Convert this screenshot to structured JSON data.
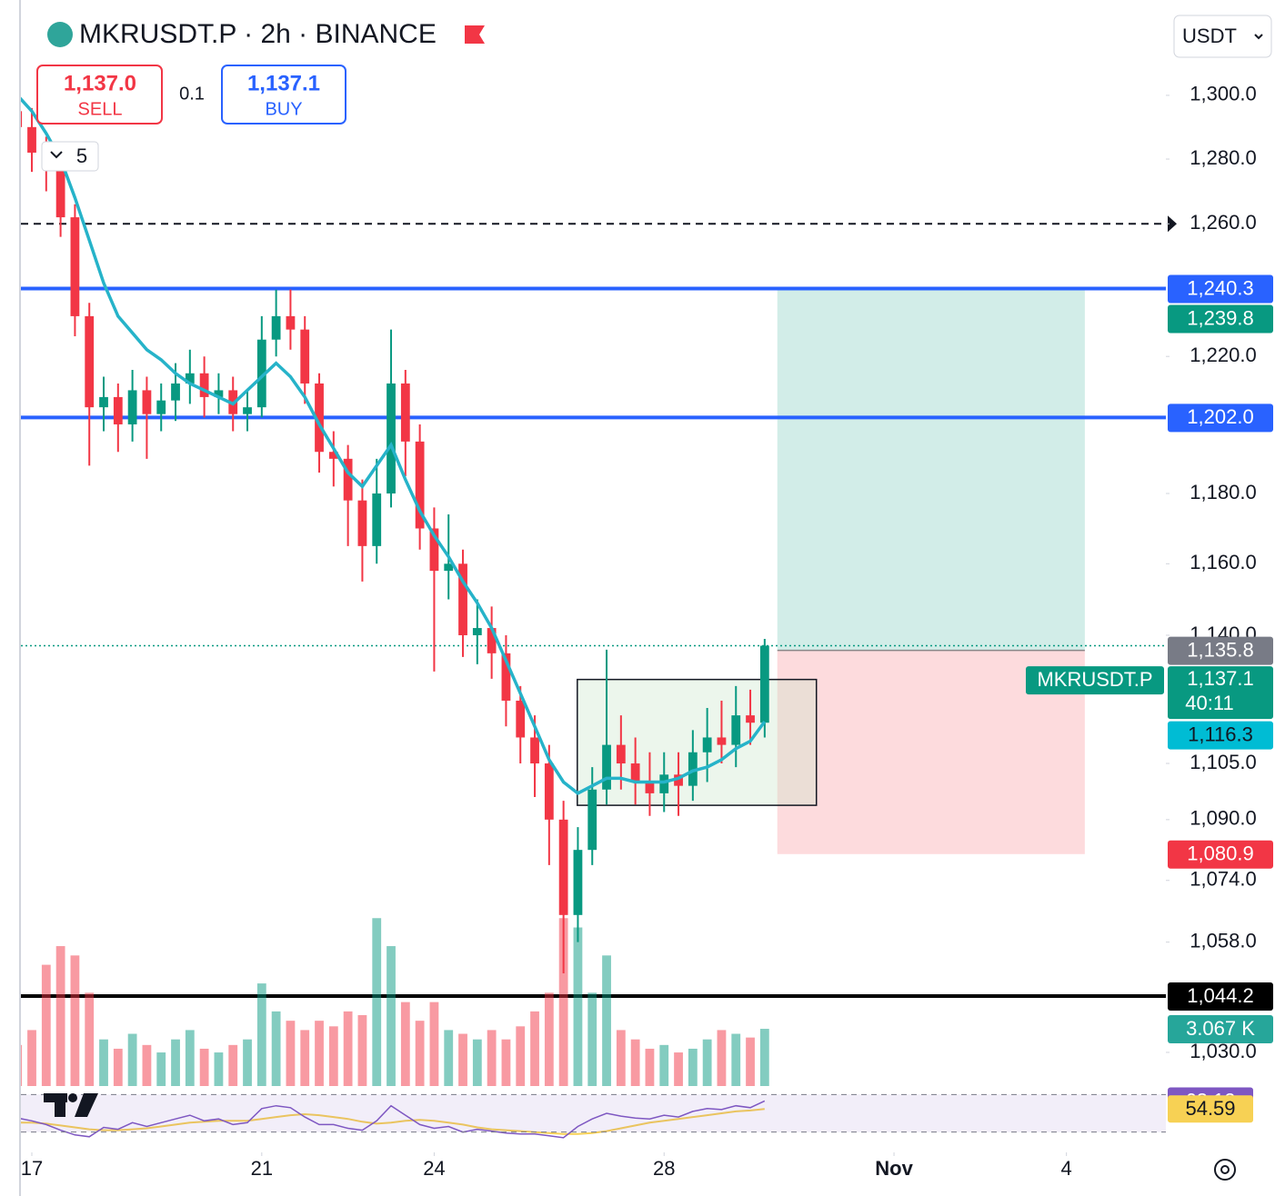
{
  "toolbar": {
    "symbol_title": "MKRUSDT.P · 2h · BINANCE",
    "sell_price": "1,137.0",
    "sell_label": "SELL",
    "spread": "0.1",
    "buy_price": "1,137.1",
    "buy_label": "BUY",
    "indicators_count": "5",
    "currency": "USDT"
  },
  "chart_data": {
    "type": "candlestick",
    "log_scale": true,
    "symbol": "MKRUSDT.P",
    "last_price_label": "1,137.1",
    "countdown": "40:11",
    "up_color": "#089981",
    "down_color": "#f23645",
    "xlim": [
      -0.554,
      19.73
    ],
    "xticks": [
      {
        "value": 0,
        "label": "17"
      },
      {
        "value": 4,
        "label": "21"
      },
      {
        "value": 7,
        "label": "24"
      },
      {
        "value": 11,
        "label": "28"
      },
      {
        "value": 15,
        "label": "Nov"
      },
      {
        "value": 18,
        "label": "4"
      }
    ],
    "ylim": [
      1021.6,
      1330.5
    ],
    "yticks": [
      {
        "value": 1300,
        "label": "1,300.0"
      },
      {
        "value": 1280,
        "label": "1,280.0"
      },
      {
        "value": 1260,
        "label": "1,260.0"
      },
      {
        "value": 1220,
        "label": "1,220.0"
      },
      {
        "value": 1180,
        "label": "1,180.0"
      },
      {
        "value": 1160,
        "label": "1,160.0"
      },
      {
        "value": 1140,
        "label": "1,140.0"
      },
      {
        "value": 1105,
        "label": "1,105.0"
      },
      {
        "value": 1090,
        "label": "1,090.0"
      },
      {
        "value": 1074,
        "label": "1,074.0"
      },
      {
        "value": 1058,
        "label": "1,058.0"
      },
      {
        "value": 1030,
        "label": "1,030.0"
      }
    ],
    "x": [
      -0.25,
      0,
      0.25,
      0.5,
      0.75,
      1,
      1.25,
      1.5,
      1.75,
      2,
      2.25,
      2.5,
      2.75,
      3,
      3.25,
      3.5,
      3.75,
      4,
      4.25,
      4.5,
      4.75,
      5,
      5.25,
      5.5,
      5.75,
      6,
      6.25,
      6.5,
      6.75,
      7,
      7.25,
      7.5,
      7.75,
      8,
      8.25,
      8.5,
      8.75,
      9,
      9.25,
      9.5,
      9.75,
      10,
      10.25,
      10.5,
      10.75,
      11,
      11.25,
      11.5,
      11.75,
      12,
      12.25,
      12.5,
      12.75
    ],
    "open": [
      1295,
      1290,
      1282,
      1278,
      1262,
      1232,
      1205,
      1208,
      1200,
      1210,
      1203,
      1207,
      1212,
      1215,
      1208,
      1210,
      1203,
      1205,
      1225,
      1232,
      1228,
      1212,
      1192,
      1190,
      1178,
      1165,
      1180,
      1212,
      1195,
      1170,
      1158,
      1160,
      1140,
      1142,
      1135,
      1122,
      1112,
      1105,
      1090,
      1065,
      1082,
      1098,
      1110,
      1105,
      1100,
      1097,
      1102,
      1099,
      1108,
      1112,
      1110,
      1118,
      1116
    ],
    "high": [
      1300,
      1296,
      1287,
      1283,
      1266,
      1236,
      1214,
      1212,
      1216,
      1214,
      1212,
      1218,
      1222,
      1220,
      1215,
      1214,
      1210,
      1232,
      1240,
      1240,
      1232,
      1215,
      1198,
      1194,
      1184,
      1190,
      1228,
      1216,
      1200,
      1176,
      1174,
      1164,
      1150,
      1148,
      1140,
      1126,
      1118,
      1110,
      1095,
      1088,
      1104,
      1136,
      1118,
      1112,
      1108,
      1108,
      1108,
      1114,
      1120,
      1122,
      1126,
      1125,
      1139
    ],
    "low": [
      1284,
      1276,
      1270,
      1256,
      1226,
      1188,
      1198,
      1192,
      1195,
      1190,
      1198,
      1201,
      1206,
      1202,
      1203,
      1198,
      1198,
      1202,
      1220,
      1222,
      1206,
      1186,
      1182,
      1165,
      1155,
      1160,
      1176,
      1185,
      1164,
      1130,
      1150,
      1134,
      1132,
      1128,
      1115,
      1105,
      1096,
      1078,
      1050,
      1058,
      1078,
      1094,
      1098,
      1094,
      1091,
      1092,
      1091,
      1095,
      1100,
      1105,
      1104,
      1110,
      1112
    ],
    "close": [
      1290,
      1282,
      1278,
      1262,
      1232,
      1205,
      1208,
      1200,
      1210,
      1203,
      1207,
      1212,
      1215,
      1208,
      1210,
      1203,
      1205,
      1225,
      1232,
      1228,
      1212,
      1192,
      1190,
      1178,
      1165,
      1180,
      1212,
      1195,
      1170,
      1158,
      1160,
      1140,
      1142,
      1135,
      1122,
      1112,
      1105,
      1090,
      1065,
      1082,
      1098,
      1110,
      1105,
      1100,
      1097,
      1102,
      1099,
      1108,
      1112,
      1110,
      1118,
      1116,
      1137.1
    ],
    "ma": {
      "color": "#26b3c9",
      "value_label": "1,116.3",
      "label_color": "#00bcd4",
      "values": [
        1300,
        1295,
        1288,
        1280,
        1268,
        1255,
        1242,
        1232,
        1227,
        1222,
        1219,
        1215,
        1212,
        1210,
        1208,
        1206,
        1210,
        1214,
        1218,
        1214,
        1208,
        1200,
        1193,
        1186,
        1182,
        1188,
        1194,
        1184,
        1175,
        1168,
        1162,
        1155,
        1149,
        1142,
        1133,
        1124,
        1115,
        1106,
        1100,
        1097,
        1099,
        1101,
        1101,
        1100,
        1100,
        1100,
        1101,
        1103,
        1104,
        1106,
        1109,
        1111,
        1116.3
      ]
    },
    "volume": {
      "vlim": [
        0,
        9500
      ],
      "value_label": "3.067 K",
      "label_color": "#26a69a",
      "values": [
        2200,
        3000,
        6500,
        7500,
        7000,
        5000,
        2500,
        2000,
        2800,
        2200,
        1800,
        2500,
        3000,
        2000,
        1800,
        2200,
        2500,
        5500,
        4000,
        3500,
        3000,
        3500,
        3200,
        4000,
        3800,
        9000,
        7500,
        4500,
        3500,
        4500,
        3000,
        2800,
        2500,
        3000,
        2500,
        3200,
        4000,
        5000,
        9000,
        8500,
        5000,
        7000,
        3000,
        2500,
        2000,
        2200,
        1800,
        2000,
        2500,
        3000,
        2800,
        2600,
        3067
      ]
    },
    "rsi": {
      "ylim": [
        20,
        80
      ],
      "levels": [
        70,
        30
      ],
      "color": "#7e57c2",
      "ma_color": "#f7d154",
      "values": [
        45,
        42,
        38,
        32,
        27,
        25,
        35,
        33,
        40,
        36,
        40,
        44,
        48,
        42,
        44,
        38,
        40,
        55,
        58,
        56,
        46,
        38,
        38,
        34,
        32,
        42,
        58,
        48,
        38,
        34,
        36,
        30,
        33,
        31,
        29,
        28,
        28,
        26,
        24,
        36,
        44,
        50,
        47,
        45,
        44,
        48,
        46,
        52,
        55,
        54,
        58,
        56,
        63.12
      ],
      "ma_values": [
        40,
        40,
        39,
        37,
        35,
        33,
        32,
        32,
        33,
        34,
        36,
        38,
        40,
        41,
        42,
        42,
        42,
        44,
        46,
        48,
        49,
        48,
        46,
        44,
        41,
        39,
        40,
        42,
        43,
        42,
        40,
        38,
        35,
        33,
        32,
        31,
        30,
        29,
        28,
        28,
        29,
        31,
        34,
        37,
        40,
        42,
        44,
        46,
        48,
        50,
        52,
        53,
        54.59
      ]
    },
    "lines": [
      {
        "value": 1260,
        "style": "dashed",
        "color": "#131722"
      },
      {
        "value": 1240.3,
        "label": "1,240.3",
        "color": "#2962ff"
      },
      {
        "value": 1202.0,
        "label": "1,202.0",
        "color": "#2962ff"
      },
      {
        "value": 1044.2,
        "label": "1,044.2",
        "color": "#000000"
      }
    ],
    "position": {
      "x": [
        12.97,
        18.32
      ],
      "entry": 1135.8,
      "entry_label": "1,135.8",
      "target": 1239.8,
      "target_label": "1,239.8",
      "stop": 1080.9,
      "stop_label": "1,080.9"
    },
    "rectangle": {
      "x": [
        9.49,
        13.65
      ],
      "y": [
        1093.8,
        1127.8
      ]
    }
  }
}
